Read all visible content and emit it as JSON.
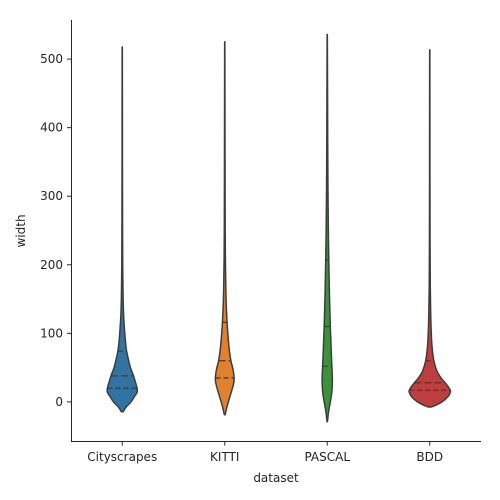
{
  "chart_data": {
    "type": "violin",
    "xlabel": "dataset",
    "ylabel": "width",
    "ylim": [
      -57,
      557
    ],
    "yticks": [
      0,
      100,
      200,
      300,
      400,
      500
    ],
    "categories": [
      "Cityscrapes",
      "KITTI",
      "PASCAL",
      "BDD"
    ],
    "colors": [
      "#3274a1",
      "#e1812c",
      "#3a923a",
      "#c03d3e"
    ],
    "violins": [
      {
        "label": "Cityscrapes",
        "color": "#3274a1",
        "quartiles": [
          20,
          38,
          74
        ],
        "range": [
          -14,
          513
        ],
        "half_widths": [
          [
            -14,
            0.02
          ],
          [
            -8,
            0.07
          ],
          [
            0,
            0.17
          ],
          [
            8,
            0.24
          ],
          [
            14,
            0.29
          ],
          [
            20,
            0.29
          ],
          [
            28,
            0.26
          ],
          [
            38,
            0.22
          ],
          [
            50,
            0.16
          ],
          [
            62,
            0.12
          ],
          [
            74,
            0.085
          ],
          [
            90,
            0.06
          ],
          [
            110,
            0.04
          ],
          [
            130,
            0.025
          ],
          [
            160,
            0.015
          ],
          [
            200,
            0.009
          ],
          [
            260,
            0.006
          ],
          [
            350,
            0.004
          ],
          [
            450,
            0.003
          ],
          [
            513,
            0.002
          ]
        ]
      },
      {
        "label": "KITTI",
        "color": "#e1812c",
        "quartiles": [
          35,
          60,
          116
        ],
        "range": [
          -18,
          518
        ],
        "half_widths": [
          [
            -18,
            0.01
          ],
          [
            -8,
            0.04
          ],
          [
            5,
            0.09
          ],
          [
            20,
            0.15
          ],
          [
            30,
            0.18
          ],
          [
            38,
            0.18
          ],
          [
            48,
            0.16
          ],
          [
            60,
            0.12
          ],
          [
            75,
            0.09
          ],
          [
            95,
            0.065
          ],
          [
            116,
            0.045
          ],
          [
            140,
            0.03
          ],
          [
            170,
            0.02
          ],
          [
            210,
            0.012
          ],
          [
            260,
            0.008
          ],
          [
            330,
            0.006
          ],
          [
            420,
            0.004
          ],
          [
            518,
            0.002
          ]
        ]
      },
      {
        "label": "PASCAL",
        "color": "#3a923a",
        "quartiles": [
          52,
          110,
          207
        ],
        "range": [
          -28,
          530
        ],
        "half_widths": [
          [
            -28,
            0.005
          ],
          [
            -15,
            0.025
          ],
          [
            0,
            0.06
          ],
          [
            15,
            0.09
          ],
          [
            30,
            0.1
          ],
          [
            45,
            0.095
          ],
          [
            60,
            0.085
          ],
          [
            80,
            0.075
          ],
          [
            110,
            0.06
          ],
          [
            150,
            0.045
          ],
          [
            207,
            0.03
          ],
          [
            260,
            0.02
          ],
          [
            320,
            0.013
          ],
          [
            380,
            0.009
          ],
          [
            450,
            0.006
          ],
          [
            530,
            0.002
          ]
        ]
      },
      {
        "label": "BDD",
        "color": "#c03d3e",
        "quartiles": [
          17,
          28,
          60
        ],
        "range": [
          -7,
          507
        ],
        "half_widths": [
          [
            -7,
            0.05
          ],
          [
            0,
            0.24
          ],
          [
            8,
            0.36
          ],
          [
            14,
            0.4
          ],
          [
            17,
            0.4
          ],
          [
            22,
            0.36
          ],
          [
            28,
            0.3
          ],
          [
            35,
            0.22
          ],
          [
            45,
            0.14
          ],
          [
            60,
            0.08
          ],
          [
            80,
            0.045
          ],
          [
            100,
            0.03
          ],
          [
            130,
            0.018
          ],
          [
            170,
            0.01
          ],
          [
            230,
            0.006
          ],
          [
            320,
            0.004
          ],
          [
            420,
            0.003
          ],
          [
            507,
            0.002
          ]
        ]
      }
    ]
  }
}
